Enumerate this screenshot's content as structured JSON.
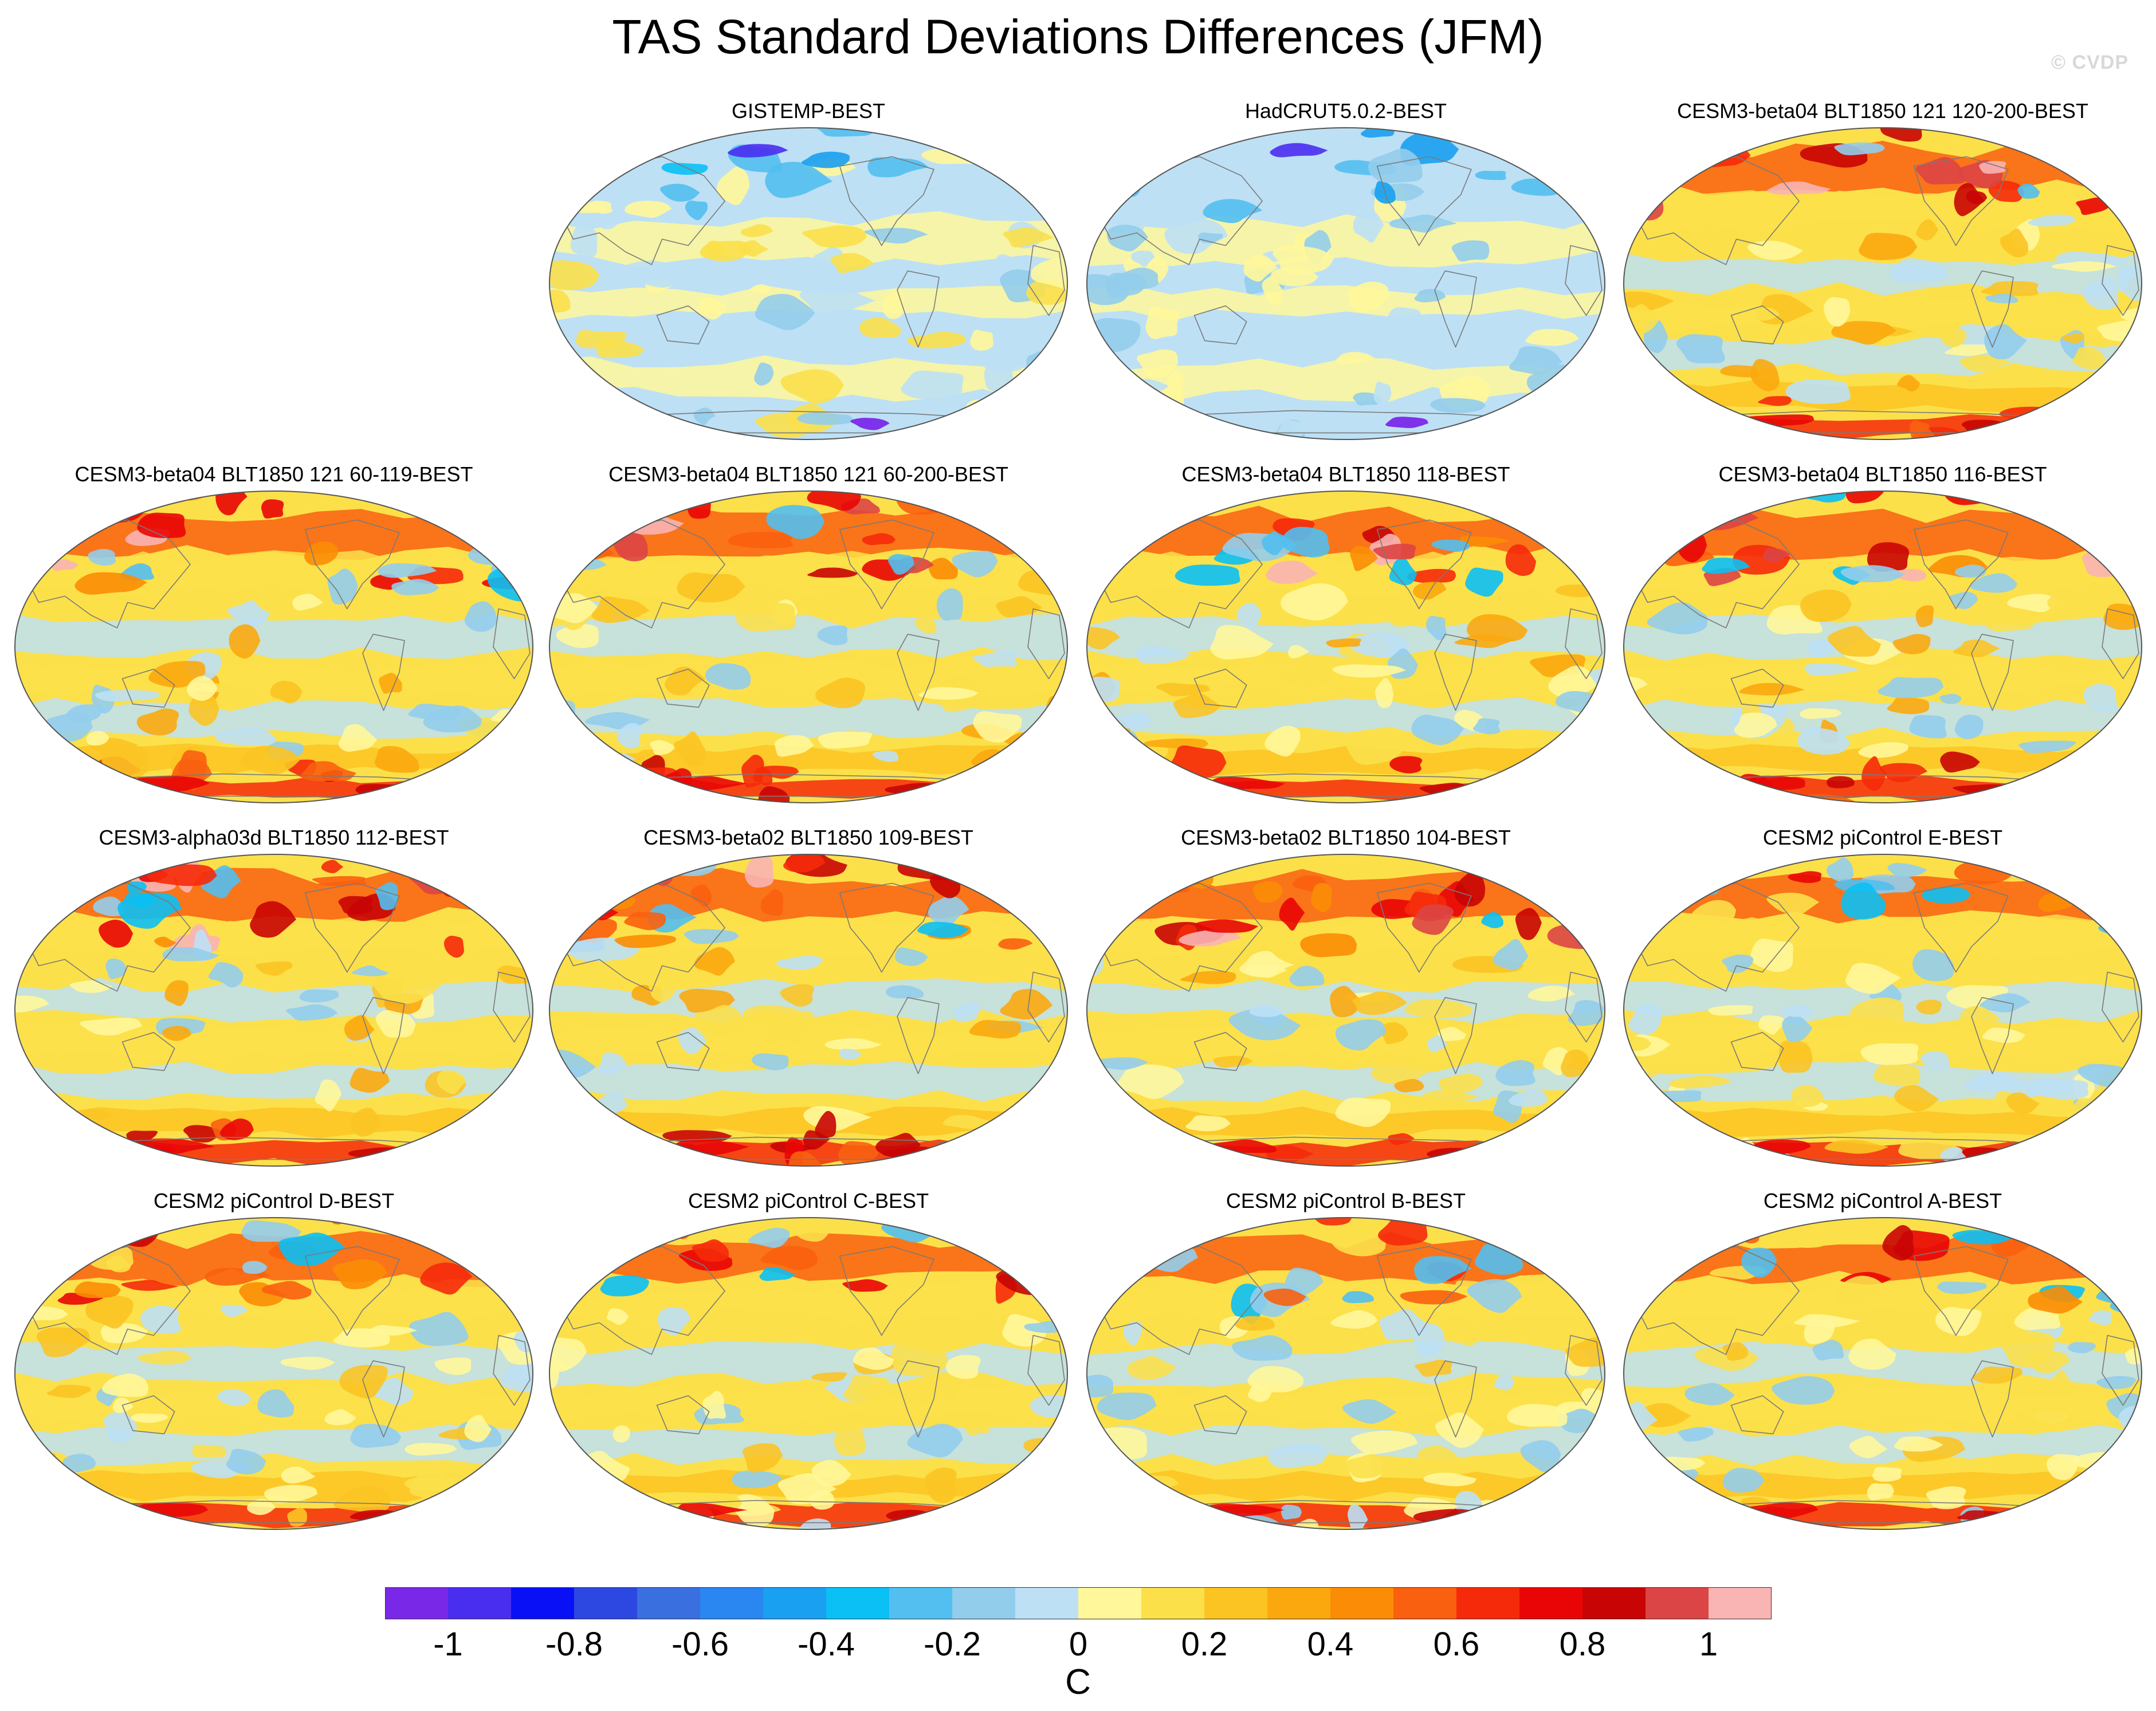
{
  "figure": {
    "title": "TAS Standard Deviations Differences (JFM)",
    "credit": "© CVDP"
  },
  "panels": [
    {
      "title": "GISTEMP-BEST",
      "style": "obs1"
    },
    {
      "title": "HadCRUT5.0.2-BEST",
      "style": "obs2"
    },
    {
      "title": "CESM3-beta04 BLT1850 121 120-200-BEST",
      "style": "model"
    },
    {
      "title": "CESM3-beta04 BLT1850 121 60-119-BEST",
      "style": "model"
    },
    {
      "title": "CESM3-beta04 BLT1850 121 60-200-BEST",
      "style": "model"
    },
    {
      "title": "CESM3-beta04 BLT1850 118-BEST",
      "style": "model"
    },
    {
      "title": "CESM3-beta04 BLT1850 116-BEST",
      "style": "model"
    },
    {
      "title": "CESM3-alpha03d BLT1850 112-BEST",
      "style": "model"
    },
    {
      "title": "CESM3-beta02 BLT1850 109-BEST",
      "style": "model"
    },
    {
      "title": "CESM3-beta02 BLT1850 104-BEST",
      "style": "model"
    },
    {
      "title": "CESM2 piControl E-BEST",
      "style": "control"
    },
    {
      "title": "CESM2 piControl D-BEST",
      "style": "control"
    },
    {
      "title": "CESM2 piControl C-BEST",
      "style": "control"
    },
    {
      "title": "CESM2 piControl B-BEST",
      "style": "control"
    },
    {
      "title": "CESM2 piControl A-BEST",
      "style": "control"
    }
  ],
  "colorbar": {
    "colors": [
      "#7a28e8",
      "#4a2ef0",
      "#0a10f5",
      "#2c48e0",
      "#3a6fe0",
      "#2a86f0",
      "#1aa0f0",
      "#0ac0f5",
      "#52bff0",
      "#92cdec",
      "#bde0f5",
      "#fff79a",
      "#fbe04a",
      "#fbc423",
      "#fba80e",
      "#fb8d06",
      "#f96010",
      "#f52a0a",
      "#e90505",
      "#c80404",
      "#db4545",
      "#f9b4b4"
    ],
    "ticks": [
      "-1",
      "-0.8",
      "-0.6",
      "-0.4",
      "-0.2",
      "0",
      "0.2",
      "0.4",
      "0.6",
      "0.8",
      "1"
    ],
    "unit": "C"
  }
}
